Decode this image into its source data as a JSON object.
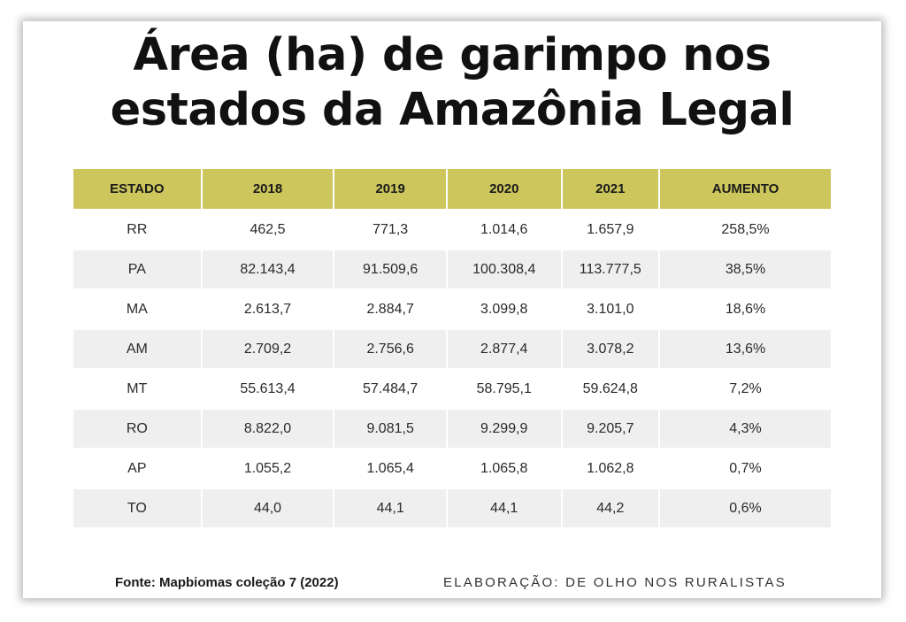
{
  "title": {
    "line1": "Área (ha) de garimpo nos",
    "line2": "estados da Amazônia Legal"
  },
  "colors": {
    "header_bg": "#cdc65d",
    "row_shade": "#efefef",
    "text": "#1a1a1a"
  },
  "chart_data": {
    "type": "table",
    "title": "Área (ha) de garimpo nos estados da Amazônia Legal",
    "columns": [
      "ESTADO",
      "2018",
      "2019",
      "2020",
      "2021",
      "AUMENTO"
    ],
    "rows": [
      [
        "RR",
        "462,5",
        "771,3",
        "1.014,6",
        "1.657,9",
        "258,5%"
      ],
      [
        "PA",
        "82.143,4",
        "91.509,6",
        "100.308,4",
        "113.777,5",
        "38,5%"
      ],
      [
        "MA",
        "2.613,7",
        "2.884,7",
        "3.099,8",
        "3.101,0",
        "18,6%"
      ],
      [
        "AM",
        "2.709,2",
        "2.756,6",
        "2.877,4",
        "3.078,2",
        "13,6%"
      ],
      [
        "MT",
        "55.613,4",
        "57.484,7",
        "58.795,1",
        "59.624,8",
        "7,2%"
      ],
      [
        "RO",
        "8.822,0",
        "9.081,5",
        "9.299,9",
        "9.205,7",
        "4,3%"
      ],
      [
        "AP",
        "1.055,2",
        "1.065,4",
        "1.065,8",
        "1.062,8",
        "0,7%"
      ],
      [
        "TO",
        "44,0",
        "44,1",
        "44,1",
        "44,2",
        "0,6%"
      ]
    ]
  },
  "footer": {
    "source": "Fonte: Mapbiomas coleção 7 (2022)",
    "credit": "ELABORAÇÃO: DE OLHO NOS RURALISTAS"
  }
}
